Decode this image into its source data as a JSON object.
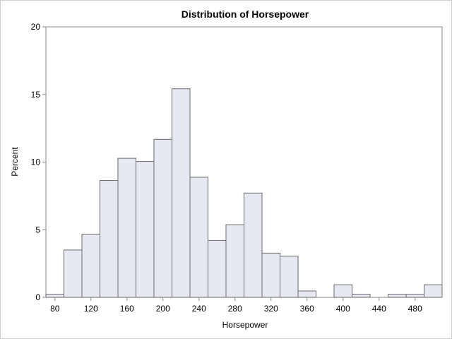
{
  "chart_data": {
    "type": "bar",
    "title": "Distribution of Horsepower",
    "xlabel": "Horsepower",
    "ylabel": "Percent",
    "bin_width": 20,
    "x_first_bin_center": 80,
    "values": [
      0.23,
      3.5,
      4.67,
      8.64,
      10.28,
      10.05,
      11.68,
      15.42,
      8.88,
      4.21,
      5.37,
      7.71,
      3.27,
      3.04,
      0.47,
      0.0,
      0.93,
      0.23,
      0.0,
      0.23,
      0.23,
      0.93
    ],
    "xlim": [
      70,
      510
    ],
    "ylim": [
      0,
      20
    ],
    "xticks": [
      80,
      120,
      160,
      200,
      240,
      280,
      320,
      360,
      400,
      440,
      480
    ],
    "xtick_labels": [
      "80",
      "120",
      "160",
      "200",
      "240",
      "280",
      "320",
      "360",
      "400",
      "440",
      "480"
    ],
    "yticks": [
      0,
      5,
      10,
      15,
      20
    ],
    "ytick_labels": [
      "0",
      "5",
      "10",
      "15",
      "20"
    ],
    "grid": false,
    "colors": {
      "bar_fill": "#e6e9f2",
      "bar_stroke": "#6a6a6a",
      "axis": "#8a8a8a"
    }
  }
}
